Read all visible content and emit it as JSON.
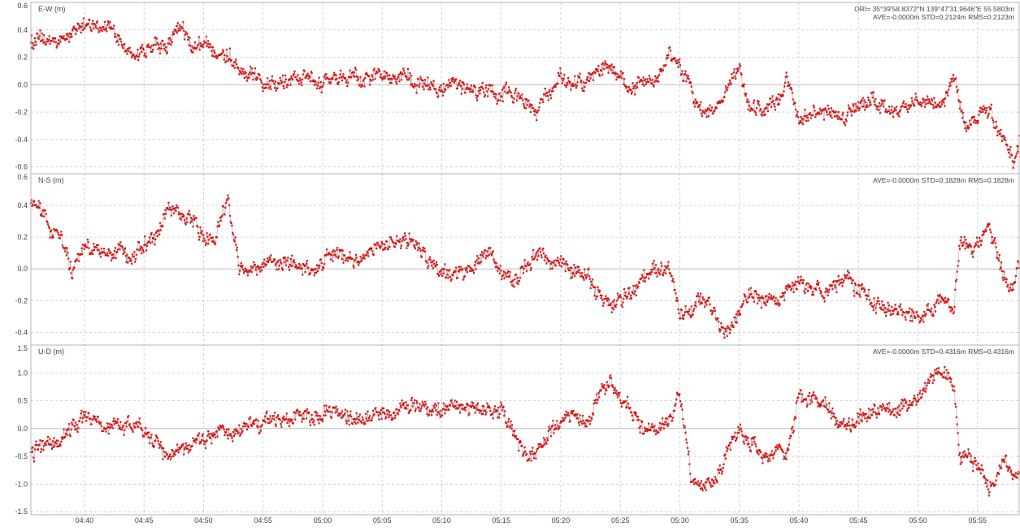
{
  "chart_data": [
    {
      "type": "scatter",
      "title": "",
      "panel_label": "E-W (m)",
      "ylabel": "E-W (m)",
      "ylim": [
        -0.65,
        0.6
      ],
      "yticks": [
        0.6,
        0.4,
        0.2,
        0.0,
        -0.2,
        -0.4,
        -0.6
      ],
      "ytick_labels": [
        "0.6",
        "0.4",
        "0.2",
        "0.0",
        "-0.2",
        "-0.4",
        "-0.6"
      ],
      "stats_lines": [
        "ORI= 35°39'58.8372\"N  139°47'31.9646\"E 55.5803m",
        "AVE=-0.0000m STD=0.2124m RMS=0.2123m"
      ],
      "series": [
        {
          "trend": [
            [
              "04:36",
              0.32
            ],
            [
              "04:38",
              0.31
            ],
            [
              "04:40",
              0.45
            ],
            [
              "04:42",
              0.42
            ],
            [
              "04:44",
              0.2
            ],
            [
              "04:46",
              0.3
            ],
            [
              "04:47",
              0.25
            ],
            [
              "04:48",
              0.48
            ],
            [
              "04:49",
              0.27
            ],
            [
              "04:51",
              0.27
            ],
            [
              "04:52",
              0.22
            ],
            [
              "04:54",
              0.07
            ],
            [
              "04:56",
              0.02
            ],
            [
              "04:58",
              0.05
            ],
            [
              "05:00",
              0.0
            ],
            [
              "05:02",
              0.05
            ],
            [
              "05:04",
              0.05
            ],
            [
              "05:06",
              0.1
            ],
            [
              "05:08",
              0.0
            ],
            [
              "05:10",
              -0.05
            ],
            [
              "05:12",
              -0.02
            ],
            [
              "05:14",
              -0.05
            ],
            [
              "05:16",
              -0.05
            ],
            [
              "05:18",
              -0.2
            ],
            [
              "05:20",
              0.05
            ],
            [
              "05:22",
              0.0
            ],
            [
              "05:24",
              0.15
            ],
            [
              "05:26",
              -0.05
            ],
            [
              "05:28",
              0.05
            ],
            [
              "05:29",
              0.22
            ],
            [
              "05:30",
              0.15
            ],
            [
              "05:32",
              -0.25
            ],
            [
              "05:34",
              -0.05
            ],
            [
              "05:35",
              0.12
            ],
            [
              "05:36",
              -0.2
            ],
            [
              "05:38",
              -0.15
            ],
            [
              "05:39",
              0.05
            ],
            [
              "05:40",
              -0.25
            ],
            [
              "05:42",
              -0.2
            ],
            [
              "05:44",
              -0.25
            ],
            [
              "05:46",
              -0.1
            ],
            [
              "05:48",
              -0.2
            ],
            [
              "05:50",
              -0.1
            ],
            [
              "05:52",
              -0.15
            ],
            [
              "05:53",
              0.05
            ],
            [
              "05:54",
              -0.3
            ],
            [
              "05:56",
              -0.2
            ],
            [
              "05:58",
              -0.55
            ],
            [
              "05:58:30",
              -0.4
            ]
          ]
        }
      ]
    },
    {
      "type": "scatter",
      "title": "",
      "panel_label": "N-S (m)",
      "ylabel": "N-S (m)",
      "ylim": [
        -0.48,
        0.6
      ],
      "yticks": [
        0.6,
        0.4,
        0.2,
        0.0,
        -0.2,
        -0.4
      ],
      "ytick_labels": [
        "0.6",
        "0.4",
        "0.2",
        "0.0",
        "-0.2",
        "-0.4"
      ],
      "stats_lines": [
        "AVE=-0.0000m STD=0.1828m RMS=0.1828m"
      ],
      "series": [
        {
          "trend": [
            [
              "04:36",
              0.4
            ],
            [
              "04:37",
              0.25
            ],
            [
              "04:38",
              0.2
            ],
            [
              "04:39",
              -0.05
            ],
            [
              "04:40",
              0.15
            ],
            [
              "04:42",
              0.1
            ],
            [
              "04:44",
              0.08
            ],
            [
              "04:46",
              0.2
            ],
            [
              "04:47",
              0.38
            ],
            [
              "04:49",
              0.32
            ],
            [
              "04:50",
              0.2
            ],
            [
              "04:51",
              0.18
            ],
            [
              "04:52",
              0.45
            ],
            [
              "04:53",
              0.0
            ],
            [
              "04:55",
              0.02
            ],
            [
              "04:57",
              0.05
            ],
            [
              "04:59",
              0.0
            ],
            [
              "05:01",
              0.1
            ],
            [
              "05:03",
              0.05
            ],
            [
              "05:05",
              0.15
            ],
            [
              "05:07",
              0.2
            ],
            [
              "05:08",
              0.15
            ],
            [
              "05:10",
              -0.05
            ],
            [
              "05:12",
              0.0
            ],
            [
              "05:14",
              0.1
            ],
            [
              "05:16",
              -0.1
            ],
            [
              "05:18",
              0.1
            ],
            [
              "05:20",
              0.05
            ],
            [
              "05:22",
              -0.05
            ],
            [
              "05:24",
              -0.25
            ],
            [
              "05:26",
              -0.15
            ],
            [
              "05:28",
              0.0
            ],
            [
              "05:29",
              0.05
            ],
            [
              "05:30",
              -0.3
            ],
            [
              "05:32",
              -0.2
            ],
            [
              "05:34",
              -0.4
            ],
            [
              "05:36",
              -0.15
            ],
            [
              "05:38",
              -0.2
            ],
            [
              "05:40",
              -0.05
            ],
            [
              "05:42",
              -0.15
            ],
            [
              "05:44",
              -0.05
            ],
            [
              "05:46",
              -0.2
            ],
            [
              "05:48",
              -0.25
            ],
            [
              "05:50",
              -0.3
            ],
            [
              "05:52",
              -0.2
            ],
            [
              "05:53",
              -0.25
            ],
            [
              "05:53:30",
              0.15
            ],
            [
              "05:55",
              0.15
            ],
            [
              "05:56",
              0.3
            ],
            [
              "05:57",
              0.0
            ],
            [
              "05:58",
              -0.15
            ],
            [
              "05:58:30",
              0.05
            ]
          ]
        }
      ]
    },
    {
      "type": "scatter",
      "title": "",
      "panel_label": "U-D (m)",
      "ylabel": "U-D (m)",
      "ylim": [
        -1.55,
        1.5
      ],
      "yticks": [
        1.5,
        1.0,
        0.5,
        0.0,
        -0.5,
        -1.0,
        -1.5
      ],
      "ytick_labels": [
        "1.5",
        "1.0",
        "0.5",
        "0.0",
        "-0.5",
        "-1.0",
        "-1.5"
      ],
      "stats_lines": [
        "AVE=-0.0000m STD=0.4316m RMS=0.4316m"
      ],
      "series": [
        {
          "trend": [
            [
              "04:36",
              -0.4
            ],
            [
              "04:38",
              -0.2
            ],
            [
              "04:40",
              0.3
            ],
            [
              "04:42",
              0.0
            ],
            [
              "04:44",
              0.1
            ],
            [
              "04:46",
              -0.2
            ],
            [
              "04:47",
              -0.5
            ],
            [
              "04:49",
              -0.3
            ],
            [
              "04:51",
              -0.1
            ],
            [
              "04:52",
              -0.05
            ],
            [
              "04:53",
              0.0
            ],
            [
              "04:55",
              0.05
            ],
            [
              "04:57",
              0.15
            ],
            [
              "04:59",
              0.2
            ],
            [
              "05:01",
              0.3
            ],
            [
              "05:03",
              0.15
            ],
            [
              "05:05",
              0.25
            ],
            [
              "05:07",
              0.35
            ],
            [
              "05:09",
              0.35
            ],
            [
              "05:11",
              0.4
            ],
            [
              "05:13",
              0.35
            ],
            [
              "05:15",
              0.3
            ],
            [
              "05:17",
              -0.5
            ],
            [
              "05:18",
              -0.5
            ],
            [
              "05:19",
              -0.1
            ],
            [
              "05:21",
              0.3
            ],
            [
              "05:22",
              0.1
            ],
            [
              "05:24",
              0.85
            ],
            [
              "05:25",
              0.55
            ],
            [
              "05:27",
              -0.05
            ],
            [
              "05:29",
              0.1
            ],
            [
              "05:30",
              0.6
            ],
            [
              "05:31",
              -1.0
            ],
            [
              "05:33",
              -1.0
            ],
            [
              "05:34",
              -0.4
            ],
            [
              "05:35",
              -0.1
            ],
            [
              "05:37",
              -0.4
            ],
            [
              "05:39",
              -0.5
            ],
            [
              "05:40",
              0.6
            ],
            [
              "05:42",
              0.45
            ],
            [
              "05:44",
              0.05
            ],
            [
              "05:46",
              0.3
            ],
            [
              "05:48",
              0.3
            ],
            [
              "05:50",
              0.55
            ],
            [
              "05:51",
              0.8
            ],
            [
              "05:52",
              1.0
            ],
            [
              "05:53",
              0.8
            ],
            [
              "05:53:30",
              -0.5
            ],
            [
              "05:55",
              -0.7
            ],
            [
              "05:56",
              -1.1
            ],
            [
              "05:57",
              -0.6
            ],
            [
              "05:58",
              -0.8
            ],
            [
              "05:58:30",
              -0.9
            ]
          ]
        }
      ]
    }
  ],
  "x_axis": {
    "range": [
      "04:35:30",
      "05:58:30"
    ],
    "tick_labels": [
      "04:40",
      "04:45",
      "04:50",
      "04:55",
      "05:00",
      "05:05",
      "05:10",
      "05:15",
      "05:20",
      "05:25",
      "05:30",
      "05:35",
      "05:40",
      "05:45",
      "05:50",
      "05:55"
    ]
  },
  "grid": true,
  "colors": {
    "points": "#dd1111",
    "line": "#999999",
    "grid": "#c8c8c8",
    "frame": "#b4b4b4",
    "text": "#444444"
  }
}
